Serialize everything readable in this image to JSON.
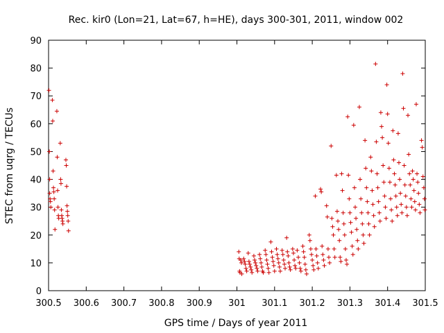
{
  "chart_data": {
    "type": "scatter",
    "title": "Rec. kir0 (Lon=21, Lat=67, h=HE), days 300-301, 2011, window 002",
    "xlabel": "GPS time / Days of year 2011",
    "ylabel": "STEC from uqrg / TECUs",
    "xlim": [
      300.5,
      301.5
    ],
    "ylim": [
      0,
      90
    ],
    "xticks": [
      "300.5",
      "300.6",
      "300.7",
      "300.8",
      "300.9",
      "301",
      "301.1",
      "301.2",
      "301.3",
      "301.4",
      "301.5"
    ],
    "yticks": [
      "0",
      "10",
      "20",
      "30",
      "40",
      "50",
      "60",
      "70",
      "80",
      "90"
    ],
    "grid": false,
    "marker": "+",
    "color": "#cc0000",
    "series": [
      {
        "points": [
          [
            300.501,
            72
          ],
          [
            300.502,
            50
          ],
          [
            300.503,
            40
          ],
          [
            300.503,
            35
          ],
          [
            300.504,
            33
          ],
          [
            300.505,
            32
          ],
          [
            300.506,
            30
          ],
          [
            300.51,
            68.5
          ],
          [
            300.511,
            61
          ],
          [
            300.512,
            43
          ],
          [
            300.513,
            37
          ],
          [
            300.514,
            35.5
          ],
          [
            300.515,
            33
          ],
          [
            300.516,
            29
          ],
          [
            300.517,
            22
          ],
          [
            300.522,
            64.5
          ],
          [
            300.523,
            48
          ],
          [
            300.524,
            36
          ],
          [
            300.525,
            30
          ],
          [
            300.526,
            27
          ],
          [
            300.527,
            26
          ],
          [
            300.531,
            53
          ],
          [
            300.532,
            40
          ],
          [
            300.533,
            38.5
          ],
          [
            300.534,
            29
          ],
          [
            300.535,
            27
          ],
          [
            300.536,
            26
          ],
          [
            300.537,
            25
          ],
          [
            300.538,
            24
          ],
          [
            300.546,
            47
          ],
          [
            300.547,
            45
          ],
          [
            300.548,
            37.5
          ],
          [
            300.549,
            30.5
          ],
          [
            300.55,
            28.5
          ],
          [
            300.551,
            27
          ],
          [
            300.552,
            25
          ],
          [
            300.553,
            21.5
          ],
          [
            301.005,
            14
          ],
          [
            301.006,
            11.5
          ],
          [
            301.007,
            7
          ],
          [
            301.008,
            6.5
          ],
          [
            301.01,
            11
          ],
          [
            301.012,
            10
          ],
          [
            301.013,
            6
          ],
          [
            301.018,
            11.5
          ],
          [
            301.02,
            10.5
          ],
          [
            301.022,
            9.5
          ],
          [
            301.024,
            8
          ],
          [
            301.026,
            7
          ],
          [
            301.03,
            13.5
          ],
          [
            301.032,
            10.5
          ],
          [
            301.034,
            9.5
          ],
          [
            301.036,
            8.5
          ],
          [
            301.038,
            7.5
          ],
          [
            301.04,
            6.5
          ],
          [
            301.045,
            12.5
          ],
          [
            301.047,
            11
          ],
          [
            301.049,
            10
          ],
          [
            301.051,
            9
          ],
          [
            301.053,
            8
          ],
          [
            301.055,
            7
          ],
          [
            301.06,
            13
          ],
          [
            301.062,
            11.5
          ],
          [
            301.064,
            10
          ],
          [
            301.066,
            8.5
          ],
          [
            301.068,
            7
          ],
          [
            301.07,
            6.5
          ],
          [
            301.075,
            14.5
          ],
          [
            301.077,
            13
          ],
          [
            301.079,
            11
          ],
          [
            301.081,
            9.5
          ],
          [
            301.083,
            8
          ],
          [
            301.085,
            6.5
          ],
          [
            301.09,
            17.5
          ],
          [
            301.092,
            14
          ],
          [
            301.094,
            12
          ],
          [
            301.096,
            10.5
          ],
          [
            301.098,
            9
          ],
          [
            301.1,
            7
          ],
          [
            301.105,
            15
          ],
          [
            301.107,
            13
          ],
          [
            301.109,
            11.5
          ],
          [
            301.111,
            10
          ],
          [
            301.113,
            8.5
          ],
          [
            301.115,
            7
          ],
          [
            301.12,
            14.5
          ],
          [
            301.122,
            13
          ],
          [
            301.124,
            11
          ],
          [
            301.126,
            9.5
          ],
          [
            301.128,
            8
          ],
          [
            301.132,
            19
          ],
          [
            301.134,
            14
          ],
          [
            301.136,
            12.5
          ],
          [
            301.138,
            10
          ],
          [
            301.14,
            8.5
          ],
          [
            301.142,
            7.5
          ],
          [
            301.148,
            15
          ],
          [
            301.15,
            13.5
          ],
          [
            301.152,
            11
          ],
          [
            301.154,
            9
          ],
          [
            301.156,
            8
          ],
          [
            301.16,
            14.5
          ],
          [
            301.163,
            12
          ],
          [
            301.166,
            10
          ],
          [
            301.168,
            8
          ],
          [
            301.17,
            7
          ],
          [
            301.175,
            16
          ],
          [
            301.177,
            14
          ],
          [
            301.179,
            12
          ],
          [
            301.181,
            9.5
          ],
          [
            301.183,
            7.5
          ],
          [
            301.185,
            6
          ],
          [
            301.192,
            20
          ],
          [
            301.194,
            18
          ],
          [
            301.196,
            15
          ],
          [
            301.198,
            13
          ],
          [
            301.2,
            11
          ],
          [
            301.202,
            9
          ],
          [
            301.204,
            7.5
          ],
          [
            301.208,
            34
          ],
          [
            301.21,
            15
          ],
          [
            301.212,
            12.5
          ],
          [
            301.214,
            10
          ],
          [
            301.216,
            8
          ],
          [
            301.222,
            36.5
          ],
          [
            301.224,
            35.5
          ],
          [
            301.226,
            16
          ],
          [
            301.228,
            13
          ],
          [
            301.23,
            11
          ],
          [
            301.232,
            9
          ],
          [
            301.238,
            30.5
          ],
          [
            301.24,
            26.5
          ],
          [
            301.242,
            15
          ],
          [
            301.244,
            12
          ],
          [
            301.246,
            10
          ],
          [
            301.25,
            52
          ],
          [
            301.252,
            26
          ],
          [
            301.254,
            23
          ],
          [
            301.256,
            20
          ],
          [
            301.258,
            15
          ],
          [
            301.26,
            12
          ],
          [
            301.264,
            41.5
          ],
          [
            301.266,
            28.5
          ],
          [
            301.268,
            25
          ],
          [
            301.27,
            22
          ],
          [
            301.272,
            18
          ],
          [
            301.274,
            12
          ],
          [
            301.276,
            10.5
          ],
          [
            301.278,
            42
          ],
          [
            301.28,
            36
          ],
          [
            301.282,
            28
          ],
          [
            301.284,
            24
          ],
          [
            301.286,
            20
          ],
          [
            301.288,
            15
          ],
          [
            301.29,
            11
          ],
          [
            301.292,
            9.5
          ],
          [
            301.294,
            62.5
          ],
          [
            301.296,
            41.5
          ],
          [
            301.298,
            33
          ],
          [
            301.3,
            28
          ],
          [
            301.302,
            24.5
          ],
          [
            301.304,
            21
          ],
          [
            301.306,
            16
          ],
          [
            301.308,
            13
          ],
          [
            301.31,
            59.5
          ],
          [
            301.312,
            37
          ],
          [
            301.314,
            30
          ],
          [
            301.316,
            26
          ],
          [
            301.318,
            22
          ],
          [
            301.32,
            18
          ],
          [
            301.322,
            15
          ],
          [
            301.325,
            66
          ],
          [
            301.327,
            40
          ],
          [
            301.329,
            33
          ],
          [
            301.331,
            28
          ],
          [
            301.333,
            24
          ],
          [
            301.335,
            20
          ],
          [
            301.337,
            17
          ],
          [
            301.34,
            54
          ],
          [
            301.342,
            44
          ],
          [
            301.344,
            37
          ],
          [
            301.346,
            32
          ],
          [
            301.348,
            28
          ],
          [
            301.35,
            24
          ],
          [
            301.352,
            20
          ],
          [
            301.355,
            48
          ],
          [
            301.357,
            43
          ],
          [
            301.359,
            36
          ],
          [
            301.361,
            31
          ],
          [
            301.363,
            27
          ],
          [
            301.365,
            23
          ],
          [
            301.368,
            81.5
          ],
          [
            301.37,
            53.5
          ],
          [
            301.372,
            42
          ],
          [
            301.374,
            37
          ],
          [
            301.376,
            32
          ],
          [
            301.378,
            28
          ],
          [
            301.38,
            25
          ],
          [
            301.382,
            64
          ],
          [
            301.384,
            59
          ],
          [
            301.386,
            55
          ],
          [
            301.388,
            45
          ],
          [
            301.39,
            39
          ],
          [
            301.392,
            34
          ],
          [
            301.394,
            30
          ],
          [
            301.396,
            26
          ],
          [
            301.398,
            74
          ],
          [
            301.4,
            63.5
          ],
          [
            301.402,
            53
          ],
          [
            301.404,
            44
          ],
          [
            301.406,
            39
          ],
          [
            301.408,
            33
          ],
          [
            301.41,
            29
          ],
          [
            301.412,
            25
          ],
          [
            301.414,
            57.5
          ],
          [
            301.416,
            47
          ],
          [
            301.418,
            42
          ],
          [
            301.42,
            38
          ],
          [
            301.422,
            34
          ],
          [
            301.424,
            30
          ],
          [
            301.426,
            27
          ],
          [
            301.428,
            56.5
          ],
          [
            301.43,
            46
          ],
          [
            301.432,
            40
          ],
          [
            301.434,
            35
          ],
          [
            301.436,
            31
          ],
          [
            301.438,
            28
          ],
          [
            301.44,
            78
          ],
          [
            301.442,
            65.5
          ],
          [
            301.444,
            45
          ],
          [
            301.446,
            38
          ],
          [
            301.448,
            34
          ],
          [
            301.45,
            30
          ],
          [
            301.452,
            27
          ],
          [
            301.454,
            63
          ],
          [
            301.456,
            49
          ],
          [
            301.458,
            42
          ],
          [
            301.46,
            38
          ],
          [
            301.462,
            33
          ],
          [
            301.464,
            30
          ],
          [
            301.466,
            43
          ],
          [
            301.468,
            40
          ],
          [
            301.47,
            36
          ],
          [
            301.472,
            32
          ],
          [
            301.474,
            29
          ],
          [
            301.476,
            67
          ],
          [
            301.478,
            42
          ],
          [
            301.48,
            39
          ],
          [
            301.482,
            35
          ],
          [
            301.484,
            31
          ],
          [
            301.486,
            28
          ],
          [
            301.49,
            54
          ],
          [
            301.492,
            51.5
          ],
          [
            301.494,
            41
          ],
          [
            301.496,
            37
          ],
          [
            301.498,
            33
          ],
          [
            301.499,
            29
          ]
        ]
      }
    ]
  }
}
